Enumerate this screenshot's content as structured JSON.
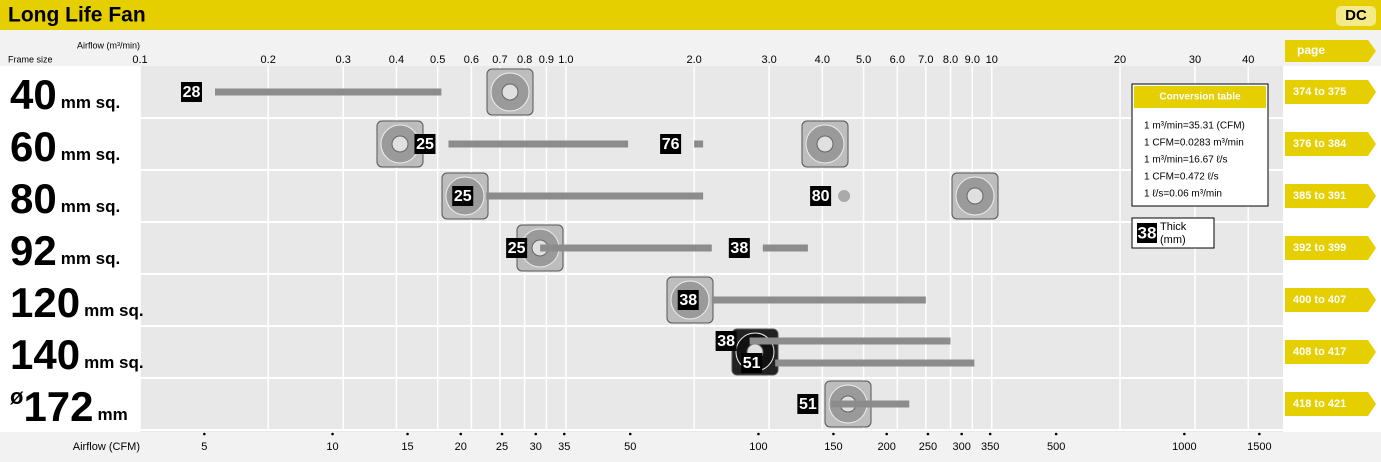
{
  "header": {
    "title": "Long Life Fan",
    "badge": "DC"
  },
  "chart_data": {
    "type": "range-bar",
    "x_label": "Airflow (m³/min)",
    "y_label": "Frame size",
    "x2_label": "Airflow (CFM)",
    "xscale": "log",
    "xlim": [
      0.1,
      45
    ],
    "xticks": [
      0.1,
      0.2,
      0.3,
      0.4,
      0.5,
      0.6,
      0.7,
      0.8,
      0.9,
      {
        "value": 1,
        "label": "1.0"
      },
      {
        "value": 2,
        "label": "2.0"
      },
      {
        "value": 3,
        "label": "3.0"
      },
      {
        "value": 4,
        "label": "4.0"
      },
      {
        "value": 5,
        "label": "5.0"
      },
      {
        "value": 6,
        "label": "6.0"
      },
      {
        "value": 7,
        "label": "7.0"
      },
      {
        "value": 8,
        "label": "8.0"
      },
      {
        "value": 9,
        "label": "9.0"
      },
      10,
      20,
      30,
      40
    ],
    "x2_factor": 35.31,
    "x2ticks": [
      5,
      10,
      15,
      20,
      25,
      30,
      35,
      50,
      100,
      150,
      200,
      250,
      300,
      350,
      500,
      1000,
      1500
    ],
    "grid": true,
    "bar_color": "#8c8c8c",
    "page_header": "page",
    "rows": [
      {
        "size": "40",
        "unit": "mm sq.",
        "pages": "374 to 375",
        "bars": [
          {
            "thickness": 28,
            "start": 0.15,
            "end": 0.51
          }
        ]
      },
      {
        "size": "60",
        "unit": "mm sq.",
        "pages": "376 to 384",
        "bars": [
          {
            "thickness": 25,
            "start": 0.53,
            "end": 1.4
          },
          {
            "thickness": 76,
            "start": 2.0,
            "end": 2.1
          }
        ]
      },
      {
        "size": "80",
        "unit": "mm sq.",
        "pages": "385 to 391",
        "bars": [
          {
            "thickness": 25,
            "start": 0.65,
            "end": 2.1
          },
          {
            "thickness": 80,
            "start": 4.5,
            "end": 4.5
          }
        ]
      },
      {
        "size": "92",
        "unit": "mm sq.",
        "pages": "392 to 399",
        "bars": [
          {
            "thickness": 25,
            "start": 0.87,
            "end": 2.2
          },
          {
            "thickness": 38,
            "start": 2.9,
            "end": 3.7
          }
        ]
      },
      {
        "size": "120",
        "unit": "mm sq.",
        "pages": "400 to 407",
        "bars": [
          {
            "thickness": 38,
            "start": 2.2,
            "end": 7.0
          }
        ]
      },
      {
        "size": "140",
        "unit": "mm sq.",
        "pages": "408 to 417",
        "bars": [
          {
            "thickness": 38,
            "start": 2.7,
            "end": 8.0
          },
          {
            "thickness": 51,
            "start": 3.1,
            "end": 9.1
          }
        ]
      },
      {
        "prefix": "ø",
        "size": "172",
        "unit": "mm",
        "pages": "418 to 421",
        "bars": [
          {
            "thickness": 51,
            "start": 4.2,
            "end": 6.4
          }
        ]
      }
    ]
  },
  "conversion_table": {
    "title": "Conversion table",
    "lines": [
      "1 m³/min=35.31 (CFM)",
      "1 CFM=0.0283 m³/min",
      "1 m³/min=16.67 ℓ/s",
      "1 CFM=0.472 ℓ/s",
      "1 ℓ/s=0.06 m³/min"
    ]
  },
  "legend": {
    "thickness": 38,
    "label": "Thick",
    "unit": "(mm)"
  }
}
